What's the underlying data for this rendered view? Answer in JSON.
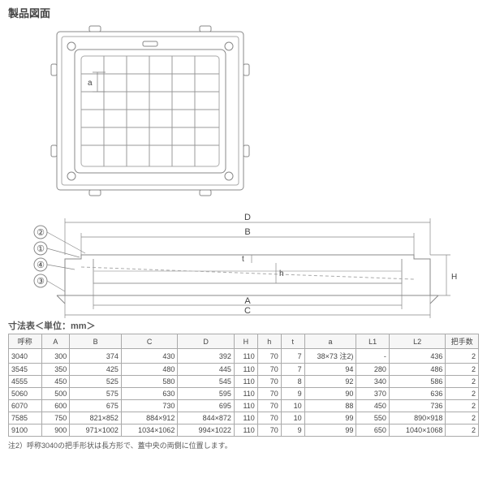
{
  "title": "製品図面",
  "diagram": {
    "top_label_a": "a",
    "side_top": {
      "callouts": [
        "②",
        "①",
        "④",
        "③"
      ],
      "dims_horiz": [
        "D",
        "B",
        "A",
        "C"
      ],
      "dims_vert": [
        "t",
        "h",
        "H"
      ]
    }
  },
  "table": {
    "title": "寸法表＜単位：mm＞",
    "columns": [
      "呼称",
      "A",
      "B",
      "C",
      "D",
      "H",
      "h",
      "t",
      "a",
      "L1",
      "L2",
      "把手数"
    ],
    "col_widths": [
      "7%",
      "6%",
      "11%",
      "12%",
      "12%",
      "5%",
      "5%",
      "5%",
      "11%",
      "7%",
      "12%",
      "7%"
    ],
    "rows": [
      [
        "3040",
        "300",
        "374",
        "430",
        "392",
        "110",
        "70",
        "7",
        "38×73 注2)",
        "-",
        "436",
        "2"
      ],
      [
        "3545",
        "350",
        "425",
        "480",
        "445",
        "110",
        "70",
        "7",
        "94",
        "280",
        "486",
        "2"
      ],
      [
        "4555",
        "450",
        "525",
        "580",
        "545",
        "110",
        "70",
        "8",
        "92",
        "340",
        "586",
        "2"
      ],
      [
        "5060",
        "500",
        "575",
        "630",
        "595",
        "110",
        "70",
        "9",
        "90",
        "370",
        "636",
        "2"
      ],
      [
        "6070",
        "600",
        "675",
        "730",
        "695",
        "110",
        "70",
        "10",
        "88",
        "450",
        "736",
        "2"
      ],
      [
        "7585",
        "750",
        "821×852",
        "884×912",
        "844×872",
        "110",
        "70",
        "10",
        "99",
        "550",
        "890×918",
        "2"
      ],
      [
        "9100",
        "900",
        "971×1002",
        "1034×1062",
        "994×1022",
        "110",
        "70",
        "9",
        "99",
        "650",
        "1040×1068",
        "2"
      ]
    ]
  },
  "footnote": "注2）呼称3040の把手形状は長方形で、蓋中央の両側に位置します。",
  "colors": {
    "stroke": "#888",
    "stroke_light": "#bbb",
    "text": "#444"
  }
}
